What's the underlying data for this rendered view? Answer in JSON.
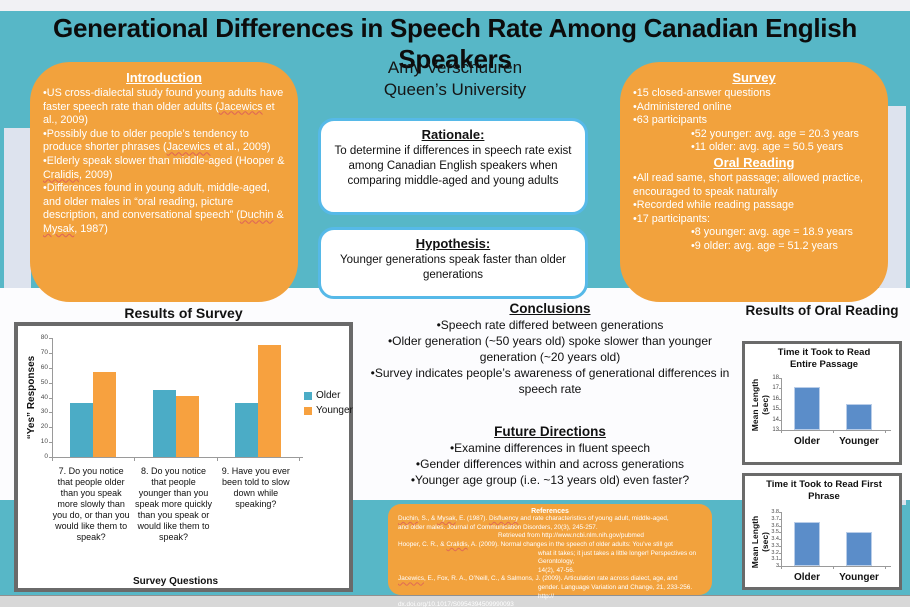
{
  "poster": {
    "title": "Generational Differences in Speech Rate Among Canadian English Speakers",
    "author": "Amy Verschuuren",
    "affiliation": "Queen’s University"
  },
  "colors": {
    "background_teal": "#57b7c7",
    "box_orange": "#f2a23d",
    "band_white": "#fcfcfe",
    "strip_lavender": "#dde3ee",
    "blue_box_border": "#56b9e8",
    "chart_border_gray": "#6a6a6a",
    "older_bar": "#4bacc6",
    "younger_bar": "#f7a13f",
    "oral_bar_blue": "#5b8dc9"
  },
  "introduction": {
    "heading": "Introduction",
    "bullets": [
      "•US cross-dialectal study  found young adults have faster speech rate than older adults (Jacewics et al., 2009)",
      "•Possibly due to older people’s tendency to produce shorter phrases (Jacewics et al., 2009)",
      "•Elderly  speak slower than middle-aged (Hooper & Cralidis, 2009)",
      "•Differences found in young adult, middle-aged, and older males in “oral reading, picture description, and conversational speech” (Duchin & Mysak, 1987)"
    ]
  },
  "survey_box": {
    "heading": "Survey",
    "bullets": [
      "•15 closed-answer questions",
      "•Administered online",
      "•63 participants"
    ],
    "sub_bullets": [
      "•52 younger: avg. age = 20.3 years",
      "•11 older: avg. age = 50.5 years"
    ],
    "oral_heading": "Oral Reading",
    "oral_bullets": [
      "•All read same, short passage; allowed practice, encouraged to speak naturally",
      "•Recorded while reading passage",
      "•17 participants:"
    ],
    "oral_sub_bullets": [
      "•8 younger: avg. age = 18.9 years",
      "•9 older: avg. age = 51.2 years"
    ]
  },
  "rationale": {
    "heading": "Rationale:",
    "text": "To determine if differences in speech rate exist among Canadian English speakers when comparing middle-aged and young adults"
  },
  "hypothesis": {
    "heading": "Hypothesis:",
    "text": "Younger generations speak faster than older generations"
  },
  "conclusions": {
    "heading": "Conclusions",
    "bullets": [
      "•Speech rate differed between generations",
      "•Older generation (~50 years old) spoke slower than younger generation (~20 years old)",
      "•Survey indicates people’s awareness of generational differences in speech rate"
    ]
  },
  "future_directions": {
    "heading": "Future Directions",
    "bullets": [
      "•Examine differences in fluent speech",
      "•Gender differences within and across generations",
      "•Younger age group (i.e. ~13 years old) even faster?"
    ]
  },
  "references": {
    "heading": "References",
    "lines": [
      {
        "text": "Duchin, S., & Mysak, E. (1987). Disfluency and rate characteristics of young adult, middle-aged,",
        "indent": 0
      },
      {
        "text": "and older males. Journal of Communication Disorders, 20(3), 245-257.",
        "indent": 0
      },
      {
        "text": "Retrieved from  http://www.ncbi.nlm.nih.gov/pubmed",
        "indent": 2
      },
      {
        "text": "Hooper, C. R., & Cralidis, A. (2009). Normal changes in the speech of older adults: You’ve still got",
        "indent": 0
      },
      {
        "text": "what it takes; it just takes a little longer! Perspectives on Gerontology,",
        "indent": 3
      },
      {
        "text": "14(2), 47-56.",
        "indent": 3
      },
      {
        "text": "Jacewics, E., Fox, R. A., O’Neill, C., & Salmons, J. (2009). Articulation rate across dialect, age, and",
        "indent": 0
      },
      {
        "text": "gender. Language Variation and Change, 21, 233-256.        http://",
        "indent": 3
      },
      {
        "text": "dx.doi.org/10.1017/S0954394509990093",
        "indent": 0
      }
    ]
  },
  "spellcheck_words": [
    "Jacewics",
    "Cralidis",
    "Duchin",
    "Mysak",
    "Disfluency"
  ],
  "chart_data": [
    {
      "type": "bar",
      "title": "Results of Survey",
      "categories": [
        "7. Do you notice that people older than you speak more slowly than you do, or than you would like them to speak?",
        "8. Do you notice that people younger than you speak more quickly than you speak or would like them to speak?",
        "9. Have you ever been told to slow down while speaking?"
      ],
      "series": [
        {
          "name": "Older",
          "color": "#4bacc6",
          "values": [
            36,
            45,
            36
          ]
        },
        {
          "name": "Younger",
          "color": "#f7a13f",
          "values": [
            57,
            41,
            75
          ]
        }
      ],
      "ylabel": "“Yes” Responses",
      "xlabel": "Survey Questions",
      "ylim": [
        0,
        80
      ],
      "yticks": [
        0,
        10,
        20,
        30,
        40,
        50,
        60,
        70,
        80
      ],
      "grid": false,
      "legend_position": "right"
    },
    {
      "type": "bar",
      "section_title": "Results of Oral Reading",
      "title": "Time it Took to Read Entire Passage",
      "categories": [
        "Older",
        "Younger"
      ],
      "values": [
        17.1,
        15.5
      ],
      "ylabel": "Mean Length (sec)",
      "ylim": [
        13,
        18
      ],
      "yticks": [
        13,
        14,
        15,
        16,
        17,
        18
      ],
      "grid": false,
      "bar_color": "#5b8dc9"
    },
    {
      "type": "bar",
      "title": "Time it Took to Read First Phrase",
      "categories": [
        "Older",
        "Younger"
      ],
      "values": [
        3.65,
        3.5
      ],
      "ylabel": "Mean Length (sec)",
      "ylim": [
        3,
        3.8
      ],
      "yticks": [
        3,
        3.1,
        3.2,
        3.3,
        3.4,
        3.5,
        3.6,
        3.7,
        3.8
      ],
      "grid": false,
      "bar_color": "#5b8dc9"
    }
  ]
}
